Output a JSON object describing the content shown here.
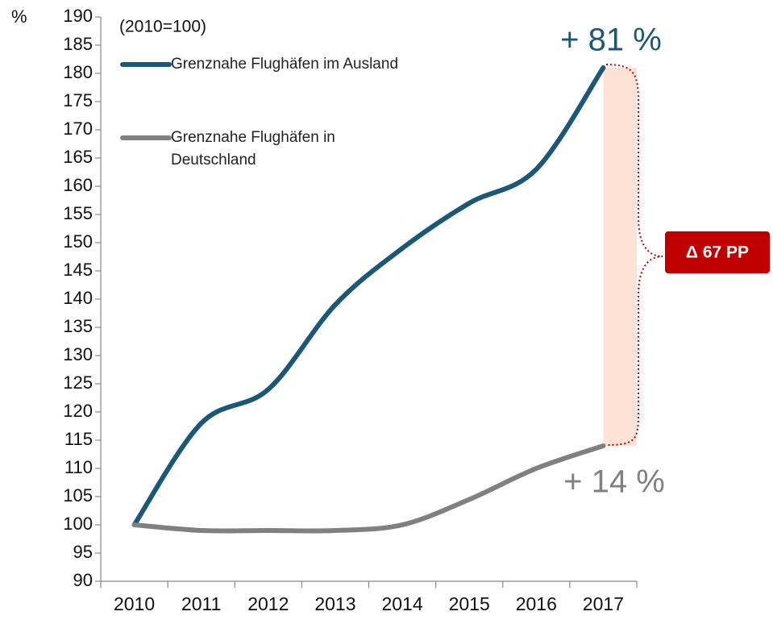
{
  "chart_data": {
    "type": "line",
    "unit_label": "%",
    "subtitle": "(2010=100)",
    "categories": [
      "2010",
      "2011",
      "2012",
      "2013",
      "2014",
      "2015",
      "2016",
      "2017"
    ],
    "series": [
      {
        "name": "Grenznahe Flughäfen im Ausland",
        "color": "#1b5878",
        "values": [
          100,
          118,
          124,
          139,
          149,
          157,
          163,
          181
        ]
      },
      {
        "name": "Grenznahe Flughäfen in Deutschland",
        "color": "#808080",
        "values": [
          100,
          99,
          99,
          99,
          100,
          104.5,
          110,
          114
        ]
      }
    ],
    "ylim": [
      90,
      190
    ],
    "yticks": [
      90,
      95,
      100,
      105,
      110,
      115,
      120,
      125,
      130,
      135,
      140,
      145,
      150,
      155,
      160,
      165,
      170,
      175,
      180,
      185,
      190
    ],
    "annotations": [
      "+ 81 %",
      "+ 14 %",
      "Δ 67 PP"
    ]
  }
}
